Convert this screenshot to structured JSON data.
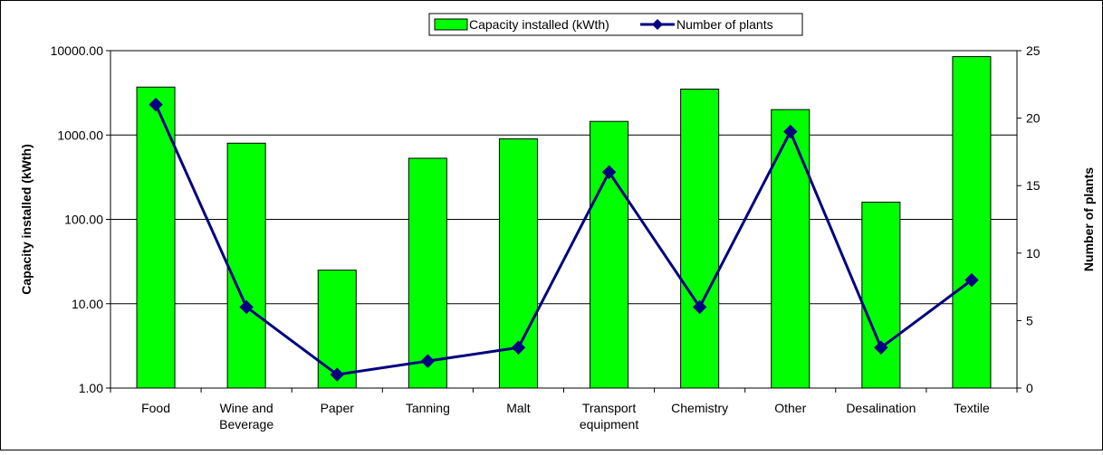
{
  "chart_data": {
    "type": "bar",
    "categories": [
      [
        "Food"
      ],
      [
        "Wine and",
        "Beverage"
      ],
      [
        "Paper"
      ],
      [
        "Tanning"
      ],
      [
        "Malt"
      ],
      [
        "Transport",
        "equipment"
      ],
      [
        "Chemistry"
      ],
      [
        "Other"
      ],
      [
        "Desalination"
      ],
      [
        "Textile"
      ]
    ],
    "series": [
      {
        "name": "Capacity installed (kWth)",
        "kind": "bar",
        "axis": "left",
        "color": "#00ff00",
        "values": [
          3700,
          800,
          25,
          530,
          900,
          1450,
          3500,
          2000,
          160,
          8500
        ]
      },
      {
        "name": "Number of plants",
        "kind": "line",
        "axis": "right",
        "color": "#000080",
        "values": [
          21,
          6,
          1,
          2,
          3,
          16,
          6,
          19,
          3,
          8
        ]
      }
    ],
    "y_left": {
      "label": "Capacity installed (kWth)",
      "scale": "log",
      "range": [
        1,
        10000
      ],
      "ticks": [
        "1.00",
        "10.00",
        "100.00",
        "1000.00",
        "10000.00"
      ]
    },
    "y_right": {
      "label": "Number of plants",
      "scale": "linear",
      "range": [
        0,
        25
      ],
      "ticks": [
        "0",
        "5",
        "10",
        "15",
        "20",
        "25"
      ]
    },
    "grid": true,
    "legend": "top-center"
  }
}
